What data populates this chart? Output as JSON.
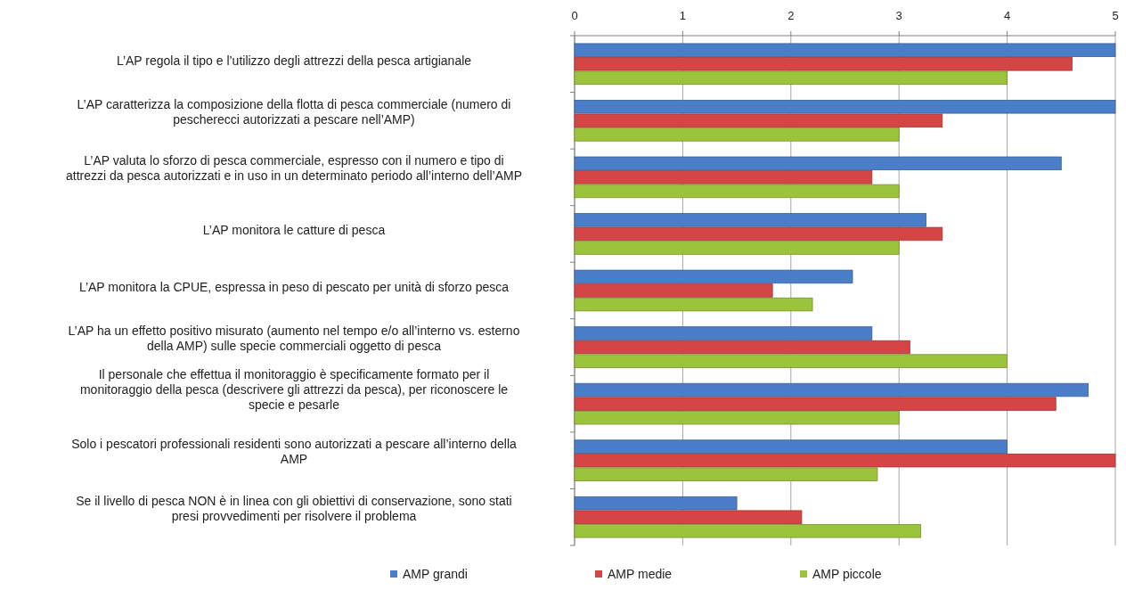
{
  "chart_data": {
    "type": "bar",
    "orientation": "horizontal",
    "categories": [
      "L’AP regola il tipo e l’utilizzo degli attrezzi della pesca artigianale",
      "L’AP caratterizza la composizione della flotta di pesca commerciale (numero di pescherecci autorizzati a pescare nell’AMP)",
      "L’AP valuta lo sforzo di pesca commerciale, espresso con il numero e tipo di attrezzi da pesca autorizzati e in uso in un determinato periodo all’interno dell’AMP",
      "L’AP monitora le catture di pesca",
      "L’AP monitora la CPUE, espressa in peso di pescato per unità di sforzo pesca",
      "L’AP ha un effetto positivo misurato (aumento nel tempo e/o all’interno vs. esterno della AMP) sulle specie commerciali oggetto di pesca",
      "Il personale che effettua il monitoraggio è specificamente formato per il monitoraggio della pesca (descrivere gli attrezzi da pesca), per riconoscere le specie e pesarle",
      "Solo i pescatori professionali residenti sono autorizzati a pescare all’interno della AMP",
      "Se il livello di pesca NON è in linea con gli obiettivi di conservazione, sono stati presi provvedimenti per risolvere il problema"
    ],
    "series": [
      {
        "name": "AMP grandi",
        "color": "#4a7ec8",
        "values": [
          5,
          5,
          4.5,
          3.25,
          2.57,
          2.75,
          4.75,
          4,
          1.5
        ]
      },
      {
        "name": "AMP medie",
        "color": "#d64545",
        "values": [
          4.6,
          3.4,
          2.75,
          3.4,
          1.83,
          3.1,
          4.45,
          5,
          2.1
        ]
      },
      {
        "name": "AMP piccole",
        "color": "#9bc43c",
        "values": [
          4,
          3,
          3,
          3,
          2.2,
          4,
          3,
          2.8,
          3.2
        ]
      }
    ],
    "xlim": [
      0,
      5
    ],
    "xticks": [
      0,
      1,
      2,
      3,
      4,
      5
    ],
    "grid": "x",
    "legend": "bottom"
  }
}
